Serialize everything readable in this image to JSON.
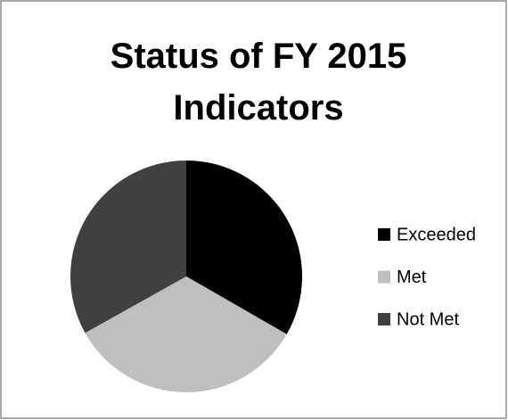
{
  "chart_data": {
    "type": "pie",
    "title": "Status of FY 2015 Indicators",
    "categories": [
      "Exceeded",
      "Met",
      "Not Met"
    ],
    "values": [
      33.3,
      33.6,
      33.1
    ],
    "colors": [
      "#000000",
      "#bfbfbf",
      "#404040"
    ],
    "legend": "right"
  }
}
